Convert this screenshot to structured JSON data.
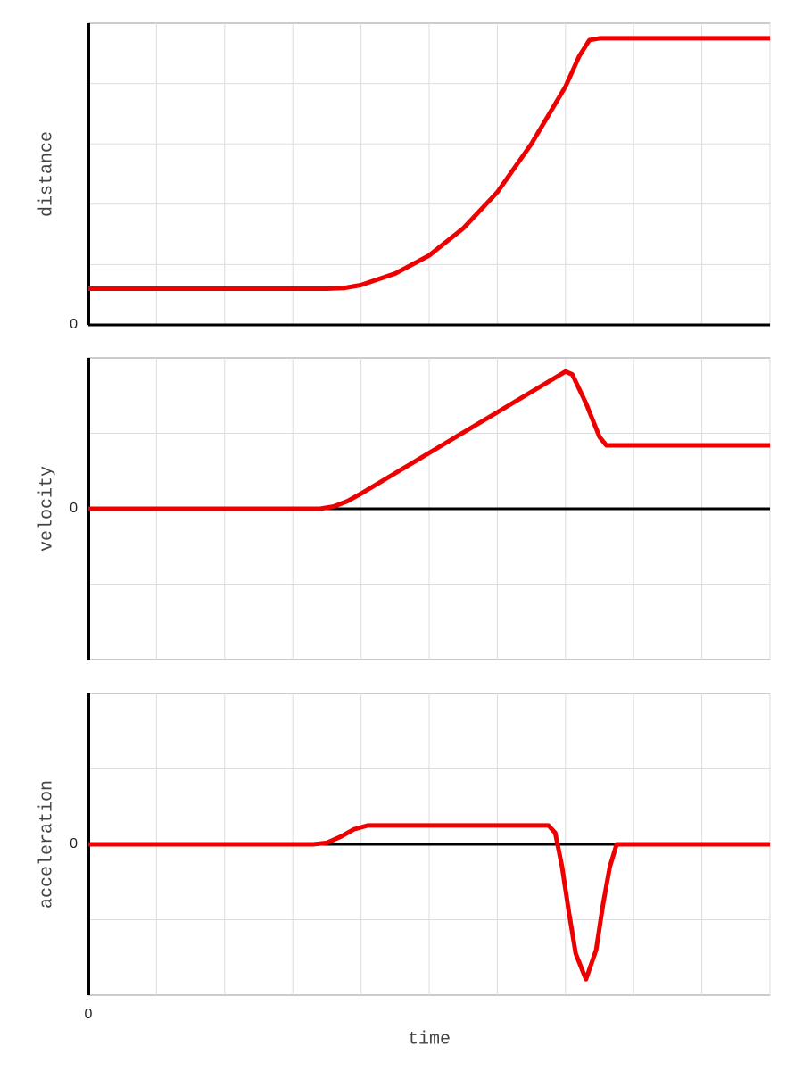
{
  "chart_data": [
    {
      "type": "line",
      "ylabel": "distance",
      "xlim": [
        0,
        10
      ],
      "ylim": [
        0,
        5
      ],
      "yticks": [
        0
      ],
      "xticks": [],
      "grid": true,
      "grid_x": [
        1,
        2,
        3,
        4,
        5,
        6,
        7,
        8,
        9,
        10
      ],
      "grid_y": [
        1,
        2,
        3,
        4
      ],
      "x": [
        0,
        1,
        2,
        3,
        3.5,
        3.75,
        4,
        4.5,
        5,
        5.5,
        6,
        6.5,
        7,
        7.2,
        7.35,
        7.5,
        8,
        9,
        10
      ],
      "series": [
        {
          "color": "#ee0000",
          "values": [
            0.6,
            0.6,
            0.6,
            0.6,
            0.6,
            0.61,
            0.66,
            0.85,
            1.15,
            1.6,
            2.2,
            3.0,
            3.95,
            4.45,
            4.72,
            4.75,
            4.75,
            4.75,
            4.75
          ]
        }
      ]
    },
    {
      "type": "line",
      "ylabel": "velocity",
      "xlim": [
        0,
        10
      ],
      "ylim": [
        -2,
        2
      ],
      "yticks": [
        0
      ],
      "xticks": [],
      "grid": true,
      "grid_x": [
        1,
        2,
        3,
        4,
        5,
        6,
        7,
        8,
        9,
        10
      ],
      "grid_y": [
        -1,
        1
      ],
      "x": [
        0,
        1,
        2,
        3,
        3.4,
        3.6,
        3.8,
        4,
        5,
        6,
        7,
        7.1,
        7.3,
        7.5,
        7.6,
        8,
        9,
        10
      ],
      "series": [
        {
          "color": "#ee0000",
          "values": [
            0,
            0,
            0,
            0,
            0,
            0.03,
            0.1,
            0.2,
            0.74,
            1.28,
            1.82,
            1.78,
            1.4,
            0.95,
            0.84,
            0.84,
            0.84,
            0.84
          ]
        }
      ]
    },
    {
      "type": "line",
      "ylabel": "acceleration",
      "xlabel": "time",
      "xlim": [
        0,
        10
      ],
      "ylim": [
        -2,
        2
      ],
      "yticks": [
        0
      ],
      "xticks": [
        0
      ],
      "grid": true,
      "grid_x": [
        1,
        2,
        3,
        4,
        5,
        6,
        7,
        8,
        9,
        10
      ],
      "grid_y": [
        -1,
        1
      ],
      "x": [
        0,
        1,
        2,
        3,
        3.3,
        3.5,
        3.7,
        3.9,
        4.1,
        5,
        6,
        6.75,
        6.85,
        6.95,
        7.05,
        7.15,
        7.3,
        7.45,
        7.55,
        7.65,
        7.75,
        8,
        9,
        10
      ],
      "series": [
        {
          "color": "#ee0000",
          "values": [
            0,
            0,
            0,
            0,
            0,
            0.02,
            0.1,
            0.2,
            0.25,
            0.25,
            0.25,
            0.25,
            0.15,
            -0.3,
            -0.9,
            -1.45,
            -1.79,
            -1.4,
            -0.8,
            -0.3,
            0,
            0,
            0,
            0
          ]
        }
      ]
    }
  ]
}
